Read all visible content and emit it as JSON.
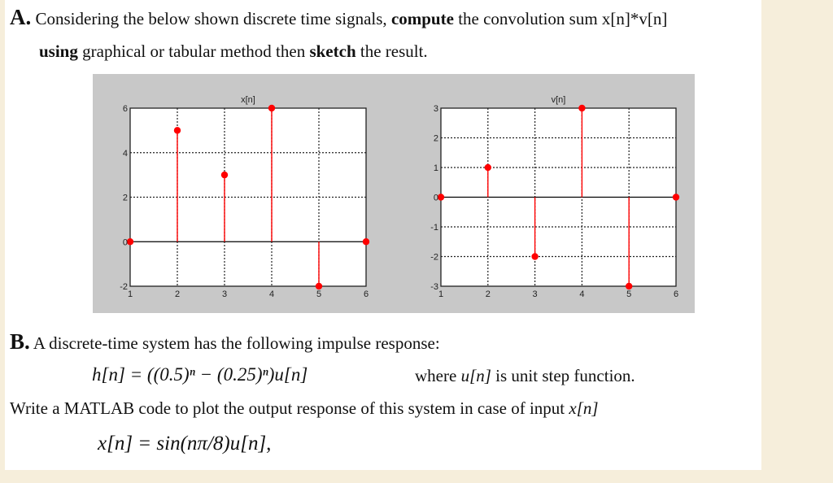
{
  "part_a": {
    "label": "A.",
    "line1_pre": "Considering the below shown discrete time signals, ",
    "line1_bold": "compute",
    "line1_post": " the convolution sum x[n]*v[n]",
    "line2_bold1": "using",
    "line2_mid": " graphical or tabular method then ",
    "line2_bold2": "sketch",
    "line2_post": " the result."
  },
  "part_b": {
    "label": "B.",
    "line1": "A discrete-time system has the following impulse response:",
    "equation_h": "h[n] = ((0.5)ⁿ − (0.25)ⁿ)u[n]",
    "where_pre": "where ",
    "where_var": "u[n]",
    "where_post": " is unit step function.",
    "line3_pre": "Write a MATLAB code to plot the output response of this system in case of input ",
    "line3_var": "x[n]",
    "equation_x": "x[n] = sin(nπ/8)u[n],"
  },
  "chart_data": [
    {
      "type": "stem",
      "title": "x[n]",
      "x": [
        1,
        2,
        3,
        4,
        5,
        6
      ],
      "values": [
        0,
        5,
        3,
        6,
        -2,
        0
      ],
      "xlim": [
        1,
        6
      ],
      "ylim": [
        -2,
        6
      ],
      "xticks": [
        1,
        2,
        3,
        4,
        5,
        6
      ],
      "yticks": [
        -2,
        0,
        2,
        4,
        6
      ],
      "grid": true,
      "color": "#ff0000"
    },
    {
      "type": "stem",
      "title": "v[n]",
      "x": [
        1,
        2,
        3,
        4,
        5,
        6
      ],
      "values": [
        0,
        1,
        -2,
        3,
        -3,
        0
      ],
      "xlim": [
        1,
        6
      ],
      "ylim": [
        -3,
        3
      ],
      "xticks": [
        1,
        2,
        3,
        4,
        5,
        6
      ],
      "yticks": [
        -3,
        -2,
        -1,
        0,
        1,
        2,
        3
      ],
      "grid": true,
      "color": "#ff0000"
    }
  ]
}
